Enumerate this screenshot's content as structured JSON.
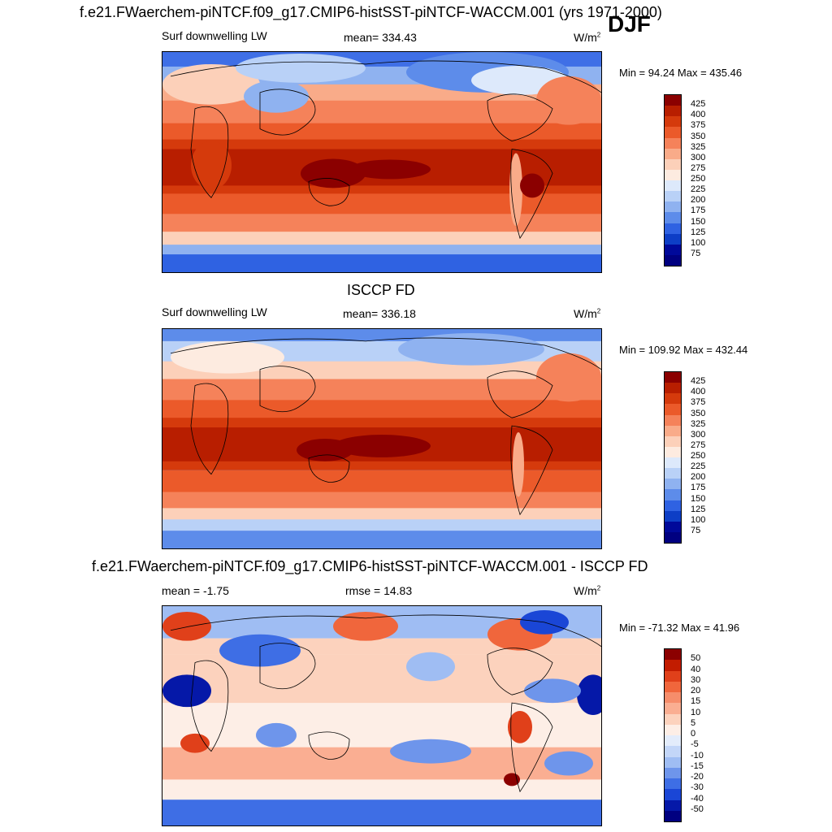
{
  "season": "DJF",
  "panel1": {
    "title": "f.e21.FWaerchem-piNTCF.f09_g17.CMIP6-histSST-piNTCF-WACCM.001 (yrs 1971-2000)",
    "variable": "Surf downwelling LW",
    "mean": "mean= 334.43",
    "units": "W/m",
    "units_sup": "2",
    "minmax": "Min =  94.24 Max = 435.46",
    "colorbar_labels": [
      "425",
      "400",
      "375",
      "350",
      "325",
      "300",
      "275",
      "250",
      "225",
      "200",
      "175",
      "150",
      "125",
      "100",
      "75"
    ]
  },
  "panel2": {
    "title": "ISCCP FD",
    "variable": "Surf downwelling LW",
    "mean": "mean= 336.18",
    "units": "W/m",
    "units_sup": "2",
    "minmax": "Min = 109.92 Max = 432.44",
    "colorbar_labels": [
      "425",
      "400",
      "375",
      "350",
      "325",
      "300",
      "275",
      "250",
      "225",
      "200",
      "175",
      "150",
      "125",
      "100",
      "75"
    ]
  },
  "panel3": {
    "title": "f.e21.FWaerchem-piNTCF.f09_g17.CMIP6-histSST-piNTCF-WACCM.001 - ISCCP FD",
    "mean": "mean =  -1.75",
    "rmse": "rmse =  14.83",
    "units": "W/m",
    "units_sup": "2",
    "minmax": "Min = -71.32 Max =  41.96",
    "colorbar_labels": [
      "50",
      "40",
      "30",
      "20",
      "15",
      "10",
      "5",
      "0",
      "-5",
      "-10",
      "-15",
      "-20",
      "-30",
      "-40",
      "-50"
    ]
  },
  "colors": {
    "abs_scale": [
      "#8b0000",
      "#b81e00",
      "#d53a0c",
      "#eb5a2a",
      "#f5825a",
      "#f9ab89",
      "#fcd0b9",
      "#fdebe0",
      "#dde9fb",
      "#b9d1f7",
      "#8fb2f0",
      "#5d8cea",
      "#2f62e2",
      "#0d3ec6",
      "#00099a",
      "#000080"
    ],
    "diff_scale": [
      "#8b0000",
      "#c21c00",
      "#e0401a",
      "#f0663c",
      "#f68d6b",
      "#faae92",
      "#fcd2bd",
      "#fdeee6",
      "#e3ecfb",
      "#c3d6f8",
      "#9fbdf3",
      "#6e95eb",
      "#3e6ee5",
      "#1a46d6",
      "#0518a8",
      "#000080"
    ]
  }
}
